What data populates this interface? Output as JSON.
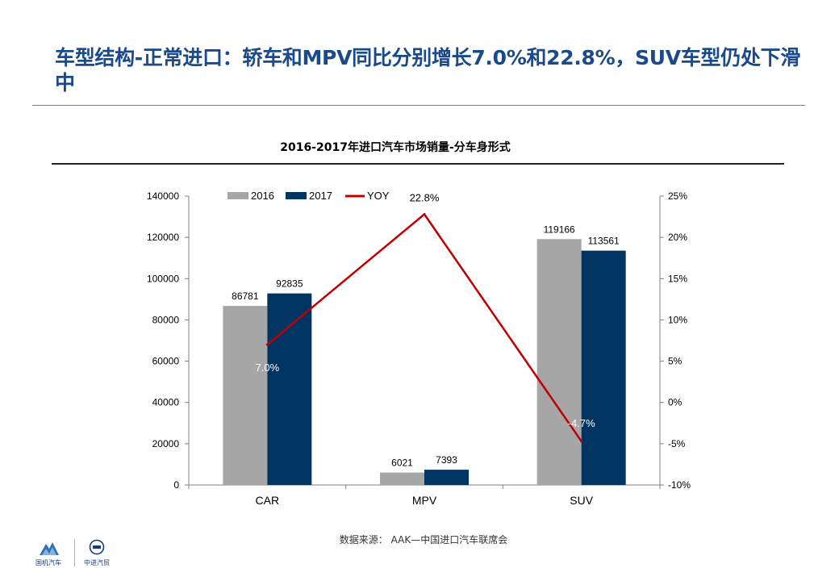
{
  "slide": {
    "title": "车型结构-正常进口：轿车和MPV同比分别增长7.0%和22.8%，SUV车型仍处下滑中",
    "source": "数据来源： AAK—中国进口汽车联席会"
  },
  "logos": {
    "left_text": "国机汽车",
    "right_text": "中进汽贸"
  },
  "colors": {
    "title": "#1a4a8a",
    "bar_2016": "#a6a6a6",
    "bar_2017": "#003462",
    "yoy_line": "#c00000"
  },
  "chart_data": {
    "type": "bar",
    "title": "2016-2017年进口汽车市场销量-分车身形式",
    "categories": [
      "CAR",
      "MPV",
      "SUV"
    ],
    "series": [
      {
        "name": "2016",
        "type": "bar",
        "axis": "left",
        "values": [
          86781,
          6021,
          119166
        ],
        "labels": [
          "86781",
          "6021",
          "119166"
        ]
      },
      {
        "name": "2017",
        "type": "bar",
        "axis": "left",
        "values": [
          92835,
          7393,
          113561
        ],
        "labels": [
          "92835",
          "7393",
          "113561"
        ]
      },
      {
        "name": "YOY",
        "type": "line",
        "axis": "right",
        "values": [
          7.0,
          22.8,
          -4.7
        ],
        "labels": [
          "7.0%",
          "22.8%",
          "-4.7%"
        ]
      }
    ],
    "y_left": {
      "ylim": [
        0,
        140000
      ],
      "ticks": [
        "0",
        "20000",
        "40000",
        "60000",
        "80000",
        "100000",
        "120000",
        "140000"
      ]
    },
    "y_right": {
      "ylim": [
        -10,
        25
      ],
      "ticks": [
        "-10%",
        "-5%",
        "0%",
        "5%",
        "10%",
        "15%",
        "20%",
        "25%"
      ]
    },
    "grid": false,
    "legend_position": "top-left"
  }
}
